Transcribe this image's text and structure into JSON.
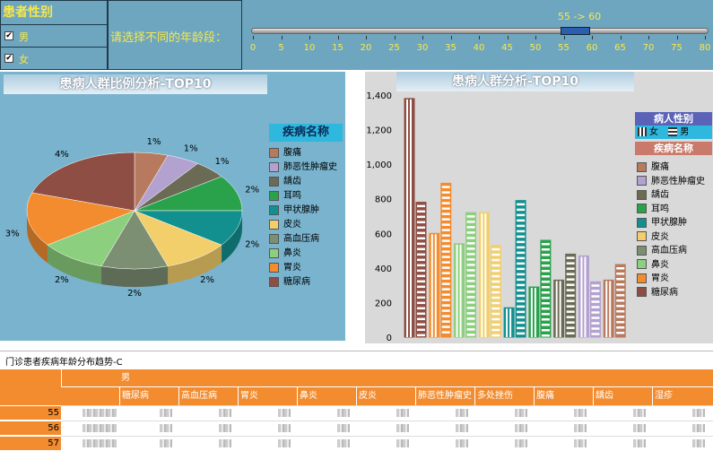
{
  "gender_filter": {
    "title": "患者性别",
    "options": [
      {
        "label": "男",
        "checked": true,
        "mark": "✔"
      },
      {
        "label": "女",
        "checked": true,
        "mark": "✔"
      }
    ]
  },
  "age_filter": {
    "label": "请选择不同的年龄段：",
    "range_text": "55 -> 60",
    "ticks": [
      "0",
      "5",
      "10",
      "15",
      "20",
      "25",
      "30",
      "35",
      "40",
      "45",
      "50",
      "55",
      "60",
      "65",
      "70",
      "75",
      "80"
    ]
  },
  "pie_chart": {
    "title": "患病人群比例分析-TOP10",
    "legend_title": "疾病名称"
  },
  "bar_chart": {
    "title": "患病人群分析-TOP10",
    "legend_gender_title": "病人性别",
    "legend_gender": [
      "女",
      "男"
    ],
    "legend_disease_title": "疾病名称"
  },
  "table": {
    "caption": "门诊患者疾病年龄分布趋势-C",
    "group_header": "男",
    "columns": [
      "糖尿病",
      "高血压病",
      "胃炎",
      "鼻炎",
      "皮炎",
      "肺恶性肿瘤史",
      "多处挫伤",
      "腹痛",
      "龋齿",
      "湿疹"
    ],
    "rows": [
      "55",
      "56",
      "57"
    ]
  },
  "chart_data": [
    {
      "type": "pie",
      "title": "患病人群比例分析-TOP10",
      "categories": [
        "腹痛",
        "肺恶性肿瘤史",
        "龋齿",
        "耳鸣",
        "甲状腺肿",
        "皮炎",
        "高血压病",
        "鼻炎",
        "胃炎",
        "糖尿病"
      ],
      "values": [
        1,
        1,
        1,
        2,
        2,
        2,
        2,
        2,
        3,
        4
      ],
      "data_labels": [
        "1%",
        "1%",
        "1%",
        "2%",
        "2%",
        "2%",
        "2%",
        "2%",
        "3%",
        "4%"
      ],
      "colors": [
        "#b87a5f",
        "#b3a1cf",
        "#6b6b55",
        "#2aa24c",
        "#12908f",
        "#f2cf6b",
        "#7d8f72",
        "#8ccf7e",
        "#f28c2f",
        "#8e4e43"
      ],
      "legend": "right"
    },
    {
      "type": "bar",
      "title": "患病人群分析-TOP10",
      "categories": [
        "糖尿病",
        "胃炎",
        "鼻炎",
        "皮炎",
        "甲状腺肿",
        "耳鸣",
        "龋齿",
        "肺恶性肿瘤史",
        "腹痛"
      ],
      "series": [
        {
          "name": "女",
          "values": [
            1380,
            600,
            540,
            720,
            170,
            290,
            330,
            470,
            330
          ]
        },
        {
          "name": "男",
          "values": [
            780,
            890,
            720,
            530,
            790,
            560,
            480,
            320,
            420
          ]
        }
      ],
      "ylim": [
        0,
        1400
      ],
      "yticks": [
        "0",
        "200",
        "400",
        "600",
        "800",
        "1,000",
        "1,200",
        "1,400"
      ],
      "legend": "right"
    }
  ]
}
